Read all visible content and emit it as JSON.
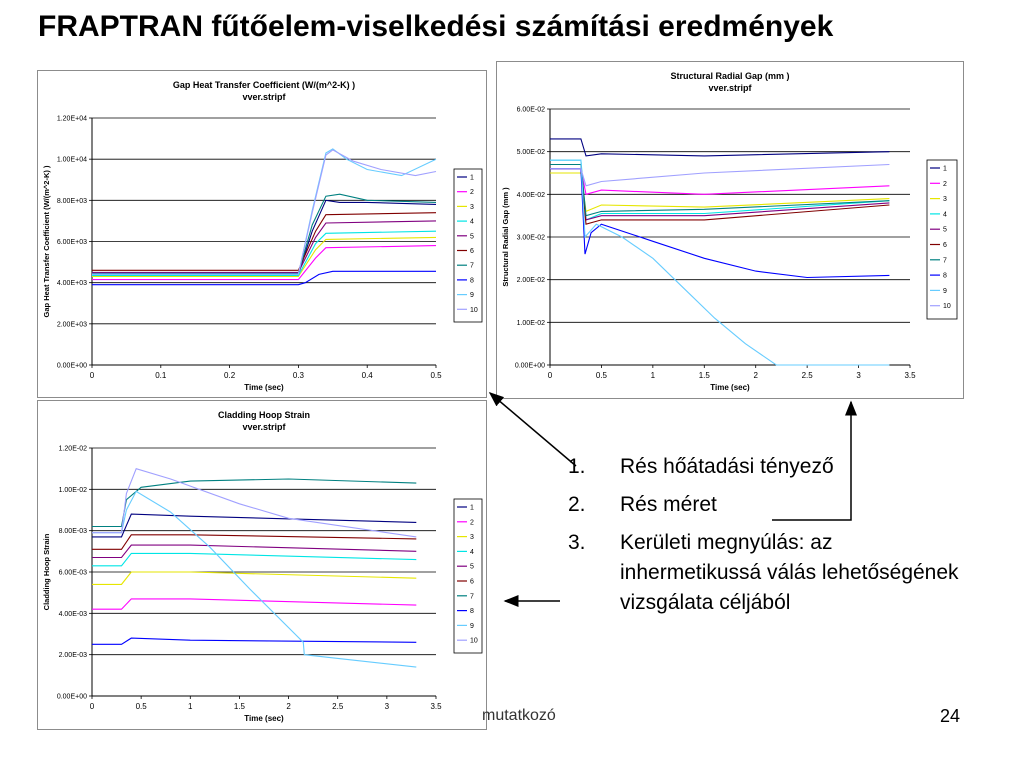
{
  "slide": {
    "title": "FRAPTRAN fűtőelem-viselkedési számítási eredmények",
    "footer": "mutatkozó",
    "page_number": "24",
    "list": [
      {
        "num": "1.",
        "text": "Rés hőátadási tényező"
      },
      {
        "num": "2.",
        "text": "Rés méret"
      },
      {
        "num": "3.",
        "text": "Kerületi megnyúlás: az inhermetikussá válás lehetőségének vizsgálata céljából"
      }
    ]
  },
  "colors": {
    "series": [
      "#000080",
      "#ff00ff",
      "#e6e600",
      "#00e5e5",
      "#800080",
      "#800000",
      "#008080",
      "#0000ff",
      "#66ccff",
      "#a0a0ff"
    ],
    "gridline": "#000000",
    "arrow": "#000000"
  },
  "chart_data": [
    {
      "type": "line",
      "title": "Gap Heat Transfer Coefficient (W/(m^2-K) )",
      "subtitle": "vver.stripf",
      "xlabel": "Time (sec)",
      "ylabel": "Gap Heat Transfer Coefficient  (W/(m^2-K) )",
      "xlim": [
        0,
        0.5
      ],
      "ylim": [
        0,
        12000
      ],
      "x_ticks": [
        0,
        0.1,
        0.2,
        0.3,
        0.4,
        0.5
      ],
      "x_tick_labels": [
        "0",
        "0.1",
        "0.2",
        "0.3",
        "0.4",
        "0.5"
      ],
      "y_ticks": [
        0,
        2000,
        4000,
        6000,
        8000,
        10000,
        12000
      ],
      "y_tick_labels": [
        "0.00E+00",
        "2.00E+03",
        "4.00E+03",
        "6.00E+03",
        "8.00E+03",
        "1.00E+04",
        "1.20E+04"
      ],
      "grid": true,
      "legend": "right",
      "series": [
        {
          "name": "1",
          "points": [
            [
              0,
              4400
            ],
            [
              0.3,
              4400
            ],
            [
              0.32,
              6500
            ],
            [
              0.34,
              8000
            ],
            [
              0.36,
              7900
            ],
            [
              0.4,
              7900
            ],
            [
              0.5,
              7800
            ]
          ]
        },
        {
          "name": "2",
          "points": [
            [
              0,
              4150
            ],
            [
              0.3,
              4150
            ],
            [
              0.325,
              5200
            ],
            [
              0.34,
              5700
            ],
            [
              0.5,
              5800
            ]
          ]
        },
        {
          "name": "3",
          "points": [
            [
              0,
              4300
            ],
            [
              0.3,
              4300
            ],
            [
              0.325,
              5600
            ],
            [
              0.34,
              6100
            ],
            [
              0.5,
              6200
            ]
          ]
        },
        {
          "name": "4",
          "points": [
            [
              0,
              4350
            ],
            [
              0.3,
              4350
            ],
            [
              0.325,
              5900
            ],
            [
              0.34,
              6400
            ],
            [
              0.5,
              6500
            ]
          ]
        },
        {
          "name": "5",
          "points": [
            [
              0,
              4500
            ],
            [
              0.3,
              4500
            ],
            [
              0.325,
              6200
            ],
            [
              0.34,
              6900
            ],
            [
              0.5,
              7000
            ]
          ]
        },
        {
          "name": "6",
          "points": [
            [
              0,
              4600
            ],
            [
              0.3,
              4600
            ],
            [
              0.325,
              6500
            ],
            [
              0.34,
              7300
            ],
            [
              0.5,
              7400
            ]
          ]
        },
        {
          "name": "7",
          "points": [
            [
              0,
              4450
            ],
            [
              0.3,
              4450
            ],
            [
              0.32,
              6800
            ],
            [
              0.34,
              8200
            ],
            [
              0.36,
              8300
            ],
            [
              0.4,
              8000
            ],
            [
              0.5,
              7900
            ]
          ]
        },
        {
          "name": "8",
          "points": [
            [
              0,
              3900
            ],
            [
              0.3,
              3900
            ],
            [
              0.31,
              4000
            ],
            [
              0.33,
              4400
            ],
            [
              0.35,
              4550
            ],
            [
              0.5,
              4550
            ]
          ]
        },
        {
          "name": "9",
          "points": [
            [
              0,
              4400
            ],
            [
              0.3,
              4400
            ],
            [
              0.32,
              7500
            ],
            [
              0.34,
              10300
            ],
            [
              0.35,
              10500
            ],
            [
              0.37,
              10000
            ],
            [
              0.4,
              9500
            ],
            [
              0.45,
              9200
            ],
            [
              0.5,
              10000
            ]
          ]
        },
        {
          "name": "10",
          "points": [
            [
              0,
              4420
            ],
            [
              0.3,
              4420
            ],
            [
              0.32,
              7400
            ],
            [
              0.34,
              10200
            ],
            [
              0.35,
              10450
            ],
            [
              0.38,
              9900
            ],
            [
              0.42,
              9500
            ],
            [
              0.47,
              9200
            ],
            [
              0.5,
              9400
            ]
          ]
        }
      ]
    },
    {
      "type": "line",
      "title": "Structural Radial Gap (mm )",
      "subtitle": "vver.stripf",
      "xlabel": "Time (sec)",
      "ylabel": "Structural Radial Gap (mm )",
      "xlim": [
        0,
        3.5
      ],
      "ylim": [
        0,
        0.06
      ],
      "x_ticks": [
        0,
        0.5,
        1,
        1.5,
        2,
        2.5,
        3,
        3.5
      ],
      "x_tick_labels": [
        "0",
        "0.5",
        "1",
        "1.5",
        "2",
        "2.5",
        "3",
        "3.5"
      ],
      "y_ticks": [
        0,
        0.01,
        0.02,
        0.03,
        0.04,
        0.05,
        0.06
      ],
      "y_tick_labels": [
        "0.00E+00",
        "1.00E-02",
        "2.00E-02",
        "3.00E-02",
        "4.00E-02",
        "5.00E-02",
        "6.00E-02"
      ],
      "grid": true,
      "legend": "right",
      "series": [
        {
          "name": "1",
          "points": [
            [
              0,
              0.053
            ],
            [
              0.3,
              0.053
            ],
            [
              0.35,
              0.049
            ],
            [
              0.5,
              0.0495
            ],
            [
              1.5,
              0.049
            ],
            [
              3.3,
              0.05
            ]
          ]
        },
        {
          "name": "2",
          "points": [
            [
              0,
              0.046
            ],
            [
              0.3,
              0.046
            ],
            [
              0.35,
              0.04
            ],
            [
              0.5,
              0.041
            ],
            [
              1.5,
              0.04
            ],
            [
              3.3,
              0.042
            ]
          ]
        },
        {
          "name": "3",
          "points": [
            [
              0,
              0.045
            ],
            [
              0.3,
              0.045
            ],
            [
              0.35,
              0.036
            ],
            [
              0.5,
              0.0375
            ],
            [
              1.5,
              0.037
            ],
            [
              3.3,
              0.039
            ]
          ]
        },
        {
          "name": "4",
          "points": [
            [
              0,
              0.048
            ],
            [
              0.3,
              0.048
            ],
            [
              0.35,
              0.034
            ],
            [
              0.5,
              0.0355
            ],
            [
              1.5,
              0.0355
            ],
            [
              3.3,
              0.0385
            ]
          ]
        },
        {
          "name": "5",
          "points": [
            [
              0,
              0.047
            ],
            [
              0.3,
              0.047
            ],
            [
              0.35,
              0.034
            ],
            [
              0.5,
              0.035
            ],
            [
              1.5,
              0.035
            ],
            [
              3.3,
              0.038
            ]
          ]
        },
        {
          "name": "6",
          "points": [
            [
              0,
              0.046
            ],
            [
              0.3,
              0.046
            ],
            [
              0.35,
              0.033
            ],
            [
              0.5,
              0.034
            ],
            [
              1.5,
              0.034
            ],
            [
              3.3,
              0.0375
            ]
          ]
        },
        {
          "name": "7",
          "points": [
            [
              0,
              0.047
            ],
            [
              0.3,
              0.047
            ],
            [
              0.35,
              0.035
            ],
            [
              0.5,
              0.036
            ],
            [
              1.5,
              0.0365
            ],
            [
              3.3,
              0.0385
            ]
          ]
        },
        {
          "name": "8",
          "points": [
            [
              0,
              0.046
            ],
            [
              0.3,
              0.046
            ],
            [
              0.34,
              0.026
            ],
            [
              0.4,
              0.031
            ],
            [
              0.5,
              0.033
            ],
            [
              1,
              0.029
            ],
            [
              1.5,
              0.025
            ],
            [
              2,
              0.022
            ],
            [
              2.5,
              0.0205
            ],
            [
              3.3,
              0.021
            ]
          ]
        },
        {
          "name": "9",
          "points": [
            [
              0,
              0.048
            ],
            [
              0.3,
              0.048
            ],
            [
              0.34,
              0.03
            ],
            [
              0.45,
              0.033
            ],
            [
              0.7,
              0.03
            ],
            [
              1,
              0.025
            ],
            [
              1.3,
              0.018
            ],
            [
              1.6,
              0.011
            ],
            [
              1.9,
              0.005
            ],
            [
              2.2,
              0
            ],
            [
              3.3,
              0
            ]
          ]
        },
        {
          "name": "10",
          "points": [
            [
              0,
              0.046
            ],
            [
              0.3,
              0.046
            ],
            [
              0.35,
              0.042
            ],
            [
              0.5,
              0.043
            ],
            [
              1.5,
              0.045
            ],
            [
              3.3,
              0.047
            ]
          ]
        }
      ]
    },
    {
      "type": "line",
      "title": "Cladding Hoop Strain",
      "subtitle": "vver.stripf",
      "xlabel": "Time (sec)",
      "ylabel": "Cladding Hoop Strain",
      "xlim": [
        0,
        3.5
      ],
      "ylim": [
        0,
        0.012
      ],
      "x_ticks": [
        0,
        0.5,
        1,
        1.5,
        2,
        2.5,
        3,
        3.5
      ],
      "x_tick_labels": [
        "0",
        "0.5",
        "1",
        "1.5",
        "2",
        "2.5",
        "3",
        "3.5"
      ],
      "y_ticks": [
        0,
        0.002,
        0.004,
        0.006,
        0.008,
        0.01,
        0.012
      ],
      "y_tick_labels": [
        "0.00E+00",
        "2.00E-03",
        "4.00E-03",
        "6.00E-03",
        "8.00E-03",
        "1.00E-02",
        "1.20E-02"
      ],
      "grid": true,
      "legend": "right",
      "series": [
        {
          "name": "1",
          "points": [
            [
              0,
              0.0077
            ],
            [
              0.3,
              0.0077
            ],
            [
              0.4,
              0.0088
            ],
            [
              1,
              0.0087
            ],
            [
              3.3,
              0.0084
            ]
          ]
        },
        {
          "name": "2",
          "points": [
            [
              0,
              0.0042
            ],
            [
              0.3,
              0.0042
            ],
            [
              0.4,
              0.0047
            ],
            [
              1,
              0.0047
            ],
            [
              3.3,
              0.0044
            ]
          ]
        },
        {
          "name": "3",
          "points": [
            [
              0,
              0.0054
            ],
            [
              0.3,
              0.0054
            ],
            [
              0.4,
              0.006
            ],
            [
              1,
              0.006
            ],
            [
              3.3,
              0.0057
            ]
          ]
        },
        {
          "name": "4",
          "points": [
            [
              0,
              0.0063
            ],
            [
              0.3,
              0.0063
            ],
            [
              0.4,
              0.0069
            ],
            [
              1,
              0.0069
            ],
            [
              3.3,
              0.0066
            ]
          ]
        },
        {
          "name": "5",
          "points": [
            [
              0,
              0.0067
            ],
            [
              0.3,
              0.0067
            ],
            [
              0.4,
              0.0073
            ],
            [
              1,
              0.0073
            ],
            [
              3.3,
              0.007
            ]
          ]
        },
        {
          "name": "6",
          "points": [
            [
              0,
              0.0071
            ],
            [
              0.3,
              0.0071
            ],
            [
              0.4,
              0.0078
            ],
            [
              1,
              0.0078
            ],
            [
              3.3,
              0.0076
            ]
          ]
        },
        {
          "name": "7",
          "points": [
            [
              0,
              0.0082
            ],
            [
              0.3,
              0.0082
            ],
            [
              0.35,
              0.0095
            ],
            [
              0.5,
              0.0101
            ],
            [
              1,
              0.0104
            ],
            [
              2,
              0.0105
            ],
            [
              3.3,
              0.0103
            ]
          ]
        },
        {
          "name": "8",
          "points": [
            [
              0,
              0.0025
            ],
            [
              0.3,
              0.0025
            ],
            [
              0.4,
              0.0028
            ],
            [
              1,
              0.0027
            ],
            [
              3.3,
              0.0026
            ]
          ]
        },
        {
          "name": "9",
          "points": [
            [
              0,
              0.0079
            ],
            [
              0.3,
              0.0079
            ],
            [
              0.35,
              0.009
            ],
            [
              0.45,
              0.0099
            ],
            [
              0.8,
              0.0089
            ],
            [
              1.2,
              0.0072
            ],
            [
              1.6,
              0.0052
            ],
            [
              2.15,
              0.0026
            ],
            [
              2.16,
              0.002
            ],
            [
              3.3,
              0.0014
            ]
          ]
        },
        {
          "name": "10",
          "points": [
            [
              0,
              0.0079
            ],
            [
              0.3,
              0.0079
            ],
            [
              0.35,
              0.0098
            ],
            [
              0.45,
              0.011
            ],
            [
              0.8,
              0.0105
            ],
            [
              1.5,
              0.0093
            ],
            [
              2,
              0.0086
            ],
            [
              3.3,
              0.0077
            ]
          ]
        }
      ]
    }
  ]
}
